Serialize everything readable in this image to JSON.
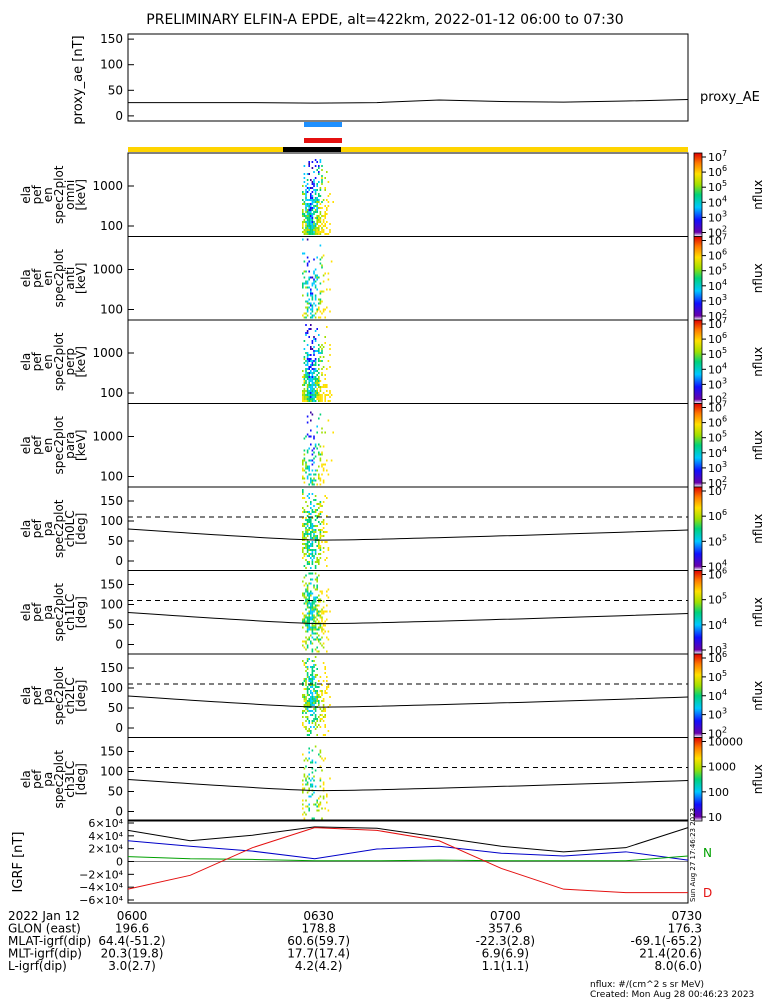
{
  "title": "PRELIMINARY ELFIN-A EPDE, alt=422km, 2022-01-12 06:00 to 07:30",
  "colors": {
    "sun_bar": "#ffd400",
    "eclipse_bar": "#000000",
    "blue_bar": "#1e90ff",
    "red_bar": "#e41010",
    "bx": "#e41010",
    "by": "#0000c8",
    "bz": "#00a000",
    "btot": "#000000"
  },
  "chart_data": [
    {
      "type": "line",
      "panel": "proxy_ae",
      "ylabel": "proxy_ae [nT]",
      "legend": "proxy_AE",
      "yticks": [
        "150",
        "100",
        "50",
        "0"
      ],
      "ylim": [
        -10,
        160
      ],
      "x_minutes": [
        0,
        20,
        30,
        40,
        50,
        60,
        70,
        80,
        90
      ],
      "values": [
        26,
        26,
        25,
        26,
        31,
        28,
        27,
        29,
        32
      ]
    },
    {
      "type": "heatmap",
      "panel": "omni",
      "ylabel": [
        "ela",
        "pef",
        "en",
        "spec2plot",
        "omni",
        "[keV]"
      ],
      "yticks": [
        "1000",
        "100"
      ],
      "colorbar": {
        "label": "nflux",
        "ticks": [
          "10^7",
          "10^6",
          "10^5",
          "10^4",
          "10^3",
          "10^2"
        ]
      }
    },
    {
      "type": "heatmap",
      "panel": "anti",
      "ylabel": [
        "ela",
        "pef",
        "en",
        "spec2plot",
        "anti",
        "[keV]"
      ],
      "yticks": [
        "1000",
        "100"
      ],
      "colorbar": {
        "label": "nflux",
        "ticks": [
          "10^7",
          "10^6",
          "10^5",
          "10^4",
          "10^3",
          "10^2"
        ]
      }
    },
    {
      "type": "heatmap",
      "panel": "perp",
      "ylabel": [
        "ela",
        "pef",
        "en",
        "spec2plot",
        "perp",
        "[keV]"
      ],
      "yticks": [
        "1000",
        "100"
      ],
      "colorbar": {
        "label": "nflux",
        "ticks": [
          "10^7",
          "10^6",
          "10^5",
          "10^4",
          "10^3",
          "10^2"
        ]
      }
    },
    {
      "type": "heatmap",
      "panel": "para",
      "ylabel": [
        "ela",
        "pef",
        "en",
        "spec2plot",
        "para",
        "[keV]"
      ],
      "yticks": [
        "1000",
        "100"
      ],
      "colorbar": {
        "label": "nflux",
        "ticks": [
          "10^7",
          "10^6",
          "10^5",
          "10^4",
          "10^3",
          "10^2"
        ]
      }
    },
    {
      "type": "heatmap",
      "panel": "ch0LC",
      "ylabel": [
        "ela",
        "pef",
        "pa",
        "spec2plot",
        "ch0LC",
        "[deg]"
      ],
      "yticks": [
        "150",
        "100",
        "50",
        "0"
      ],
      "colorbar": {
        "label": "nflux",
        "ticks": [
          "10^7",
          "10^6",
          "10^5",
          "10^4"
        ]
      }
    },
    {
      "type": "heatmap",
      "panel": "ch1LC",
      "ylabel": [
        "ela",
        "pef",
        "pa",
        "spec2plot",
        "ch1LC",
        "[deg]"
      ],
      "yticks": [
        "150",
        "100",
        "50",
        "0"
      ],
      "colorbar": {
        "label": "nflux",
        "ticks": [
          "10^6",
          "10^5",
          "10^4",
          "10^3"
        ]
      }
    },
    {
      "type": "heatmap",
      "panel": "ch2LC",
      "ylabel": [
        "ela",
        "pef",
        "pa",
        "spec2plot",
        "ch2LC",
        "[deg]"
      ],
      "yticks": [
        "150",
        "100",
        "50",
        "0"
      ],
      "colorbar": {
        "label": "nflux",
        "ticks": [
          "10^6",
          "10^5",
          "10^4",
          "10^3",
          "10^2"
        ]
      }
    },
    {
      "type": "heatmap",
      "panel": "ch3LC",
      "ylabel": [
        "ela",
        "pef",
        "pa",
        "spec2plot",
        "ch3LC",
        "[deg]"
      ],
      "yticks": [
        "150",
        "100",
        "50",
        "0"
      ],
      "colorbar": {
        "label": "nflux",
        "ticks": [
          "10000",
          "1000",
          "100",
          "10"
        ]
      }
    },
    {
      "type": "line",
      "panel": "IGRF",
      "ylabel": "IGRF [nT]",
      "yticks": [
        "6×10⁴",
        "4×10⁴",
        "2×10⁴",
        "0",
        "−2×10⁴",
        "−4×10⁴",
        "−6×10⁴"
      ],
      "ylim": [
        -60000,
        60000
      ],
      "legend": [
        "N",
        "D"
      ],
      "x_minutes": [
        0,
        10,
        20,
        30,
        40,
        50,
        60,
        70,
        80,
        90
      ],
      "series": [
        {
          "values": [
            45000,
            30000,
            38000,
            50000,
            48000,
            35000,
            22000,
            14000,
            20000,
            49000
          ]
        },
        {
          "values": [
            30000,
            22000,
            15000,
            4000,
            18000,
            22000,
            12000,
            8000,
            14000,
            2000
          ]
        },
        {
          "values": [
            7000,
            4000,
            3000,
            1000,
            1000,
            2000,
            1000,
            1000,
            1000,
            8000
          ]
        },
        {
          "values": [
            -40000,
            -20000,
            20000,
            49000,
            45000,
            30000,
            -10000,
            -40000,
            -45000,
            -45000
          ]
        }
      ]
    }
  ],
  "side_text": "Sun Aug 27 17:46:23 2023",
  "xticks": [
    "0600",
    "0630",
    "0700",
    "0730"
  ],
  "footer": {
    "rows": [
      {
        "label": "2022 Jan 12",
        "values": [
          "0600",
          "0630",
          "0700",
          "0730"
        ]
      },
      {
        "label": "GLON (east)",
        "values": [
          "196.6",
          "178.8",
          "357.6",
          "176.3"
        ]
      },
      {
        "label": "MLAT-igrf(dip)",
        "values": [
          "64.4(-51.2)",
          "60.6(59.7)",
          "-22.3(2.8)",
          "-69.1(-65.2)"
        ]
      },
      {
        "label": "MLT-igrf(dip)",
        "values": [
          "20.3(19.8)",
          "17.7(17.4)",
          "6.9(6.9)",
          "21.4(20.6)"
        ]
      },
      {
        "label": "L-igrf(dip)",
        "values": [
          "3.0(2.7)",
          "4.2(4.2)",
          "1.1(1.1)",
          "8.0(6.0)"
        ]
      }
    ],
    "note1": "nflux: #/(cm^2 s sr MeV)",
    "note2": "Created: Mon Aug 28 00:46:23 2023"
  }
}
